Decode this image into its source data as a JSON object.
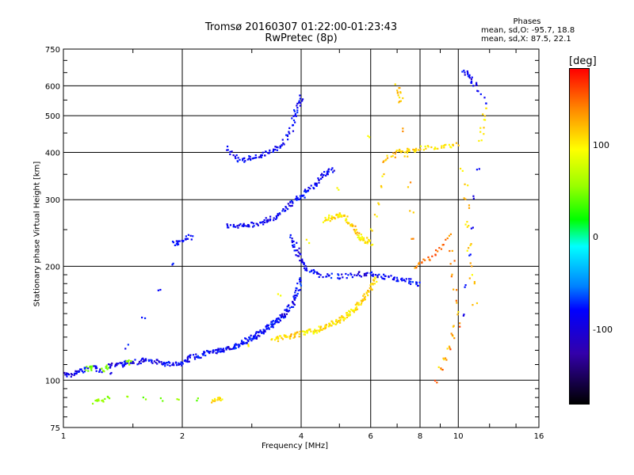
{
  "header": {
    "title": "Tromsø 20160307 01:22:00-01:23:43",
    "subtitle": "RwPretec (8p)"
  },
  "phase_stats": {
    "title": "Phases",
    "line_o": "mean, sd,O: -95.7, 18.8",
    "line_x": "mean, sd,X:  87.5, 22.1"
  },
  "colorbar": {
    "unit": "[deg]",
    "ticks": [
      "100",
      "0",
      "-100"
    ],
    "colors": [
      "#ff0000",
      "#ffff00",
      "#00ff00",
      "#00ffff",
      "#0000ff",
      "#000000"
    ]
  },
  "chart_data": {
    "type": "scatter",
    "title": "Tromsø 20160307 01:22:00-01:23:43",
    "subtitle": "RwPretec (8p)",
    "xlabel": "Frequency [MHz]",
    "ylabel": "Stationary phase Virtual Height [km]",
    "x_scale": "log",
    "y_scale": "log",
    "xlim": [
      1,
      16
    ],
    "ylim": [
      75,
      750
    ],
    "x_ticks": [
      "1",
      "2",
      "4",
      "6",
      "8",
      "10",
      "16"
    ],
    "y_ticks": [
      "75",
      "100",
      "200",
      "300",
      "400",
      "500",
      "600",
      "750"
    ],
    "grid": true,
    "colorbar_label": "[deg]",
    "series": [
      {
        "points": [
          [
            1.0,
            105,
            -110
          ],
          [
            1.05,
            103,
            -105
          ],
          [
            1.1,
            106,
            -100
          ],
          [
            1.15,
            107,
            40
          ],
          [
            1.2,
            108,
            -105
          ],
          [
            1.25,
            106,
            45
          ],
          [
            1.3,
            109,
            -110
          ],
          [
            1.4,
            110,
            -100
          ],
          [
            1.45,
            112,
            50
          ],
          [
            1.5,
            111,
            -105
          ],
          [
            1.6,
            113,
            -100
          ],
          [
            1.7,
            112,
            -110
          ],
          [
            1.8,
            111,
            -95
          ],
          [
            1.9,
            110,
            -100
          ],
          [
            2.0,
            111,
            -105
          ],
          [
            2.1,
            115,
            -100
          ],
          [
            2.2,
            116,
            -95
          ],
          [
            2.3,
            118,
            -100
          ],
          [
            2.4,
            119,
            -105
          ],
          [
            2.5,
            120,
            -100
          ],
          [
            2.6,
            121,
            -110
          ],
          [
            2.7,
            122,
            -90
          ],
          [
            2.8,
            125,
            -100
          ],
          [
            2.9,
            127,
            -95
          ],
          [
            3.0,
            129,
            -100
          ],
          [
            3.1,
            132,
            -105
          ],
          [
            3.2,
            135,
            -100
          ],
          [
            3.3,
            138,
            -90
          ],
          [
            3.4,
            141,
            -100
          ],
          [
            3.5,
            145,
            -95
          ],
          [
            3.6,
            148,
            -110
          ],
          [
            3.7,
            152,
            -100
          ],
          [
            3.8,
            160,
            -100
          ],
          [
            3.9,
            170,
            -90
          ],
          [
            4.0,
            185,
            -100
          ]
        ]
      },
      {
        "points": [
          [
            3.4,
            128,
            110
          ],
          [
            3.6,
            130,
            115
          ],
          [
            3.8,
            131,
            120
          ],
          [
            4.0,
            133,
            105
          ],
          [
            4.2,
            134,
            100
          ],
          [
            4.4,
            136,
            110
          ],
          [
            4.6,
            138,
            115
          ],
          [
            4.8,
            141,
            108
          ],
          [
            5.0,
            144,
            112
          ],
          [
            5.2,
            148,
            100
          ],
          [
            5.4,
            152,
            105
          ],
          [
            5.6,
            158,
            115
          ],
          [
            5.8,
            165,
            120
          ],
          [
            6.0,
            175,
            110
          ],
          [
            6.2,
            185,
            100
          ]
        ]
      },
      {
        "points": [
          [
            3.8,
            240,
            -100
          ],
          [
            3.9,
            220,
            -110
          ],
          [
            4.0,
            205,
            -105
          ],
          [
            4.2,
            195,
            -100
          ],
          [
            4.5,
            190,
            -95
          ],
          [
            5.0,
            188,
            -100
          ],
          [
            5.5,
            190,
            -110
          ],
          [
            6.0,
            192,
            -100
          ],
          [
            6.5,
            188,
            -105
          ],
          [
            7.0,
            185,
            -100
          ],
          [
            7.5,
            183,
            -95
          ],
          [
            8.0,
            180,
            -100
          ]
        ]
      },
      {
        "points": [
          [
            2.6,
            255,
            -100
          ],
          [
            2.8,
            257,
            -105
          ],
          [
            3.0,
            258,
            -100
          ],
          [
            3.2,
            262,
            -110
          ],
          [
            3.4,
            268,
            -100
          ],
          [
            3.6,
            280,
            -105
          ],
          [
            3.8,
            295,
            -100
          ],
          [
            4.0,
            305,
            -95
          ],
          [
            4.2,
            320,
            -100
          ],
          [
            4.4,
            335,
            -105
          ],
          [
            4.6,
            350,
            -100
          ],
          [
            4.8,
            360,
            -110
          ]
        ]
      },
      {
        "points": [
          [
            2.6,
            410,
            -105
          ],
          [
            2.8,
            380,
            -100
          ],
          [
            3.0,
            388,
            -110
          ],
          [
            3.2,
            395,
            -100
          ],
          [
            3.4,
            405,
            -105
          ],
          [
            3.6,
            420,
            -100
          ],
          [
            3.8,
            470,
            -95
          ],
          [
            3.9,
            520,
            -100
          ],
          [
            4.0,
            560,
            -105
          ]
        ]
      },
      {
        "points": [
          [
            4.6,
            265,
            110
          ],
          [
            4.8,
            270,
            115
          ],
          [
            5.0,
            275,
            105
          ],
          [
            5.2,
            268,
            110
          ],
          [
            5.4,
            255,
            120
          ],
          [
            5.6,
            240,
            100
          ],
          [
            5.8,
            235,
            108
          ],
          [
            6.0,
            230,
            112
          ],
          [
            6.5,
            380,
            120
          ],
          [
            7.0,
            400,
            110
          ],
          [
            7.5,
            405,
            115
          ],
          [
            8.0,
            410,
            105
          ],
          [
            9.0,
            412,
            110
          ],
          [
            10.0,
            420,
            115
          ],
          [
            11.0,
            160,
            118
          ],
          [
            10.5,
            325,
            110
          ]
        ]
      },
      {
        "points": [
          [
            1.9,
            230,
            -100
          ],
          [
            2.0,
            232,
            -105
          ],
          [
            2.1,
            240,
            -100
          ],
          [
            1.2,
            88,
            45
          ],
          [
            1.3,
            90,
            40
          ],
          [
            2.4,
            88,
            110
          ],
          [
            2.5,
            90,
            100
          ],
          [
            7.0,
            600,
            120
          ],
          [
            7.2,
            540,
            130
          ],
          [
            7.8,
            200,
            140
          ],
          [
            8.5,
            210,
            150
          ],
          [
            9.5,
            240,
            140
          ],
          [
            10.0,
            150,
            120
          ],
          [
            8.8,
            100,
            150
          ],
          [
            10.3,
            150,
            -100
          ],
          [
            11.4,
            430,
            110
          ],
          [
            11.8,
            545,
            -110
          ],
          [
            10.3,
            660,
            -100
          ],
          [
            11.0,
            610,
            -100
          ]
        ]
      }
    ]
  }
}
